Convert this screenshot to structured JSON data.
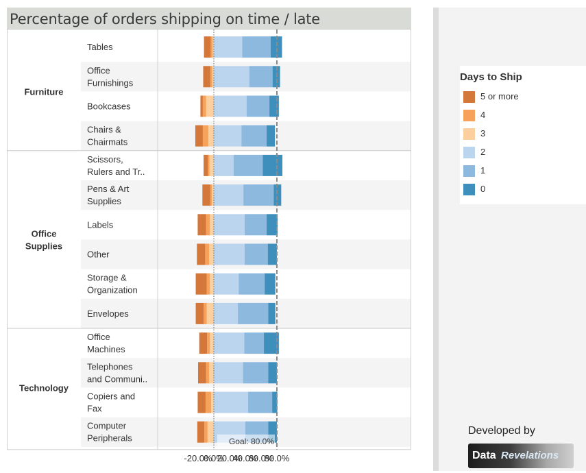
{
  "header": {
    "title": "Percentage of orders shipping on time / late"
  },
  "chart_data": {
    "type": "bar",
    "orientation": "horizontal-diverging-stacked",
    "xlim": [
      -30,
      100
    ],
    "x_ticks": [
      "-20.0%",
      "0.0%",
      "20.0%",
      "40.0%",
      "60.0%",
      "80.0%"
    ],
    "goal": {
      "value": 80,
      "label": "Goal: 80.0%"
    },
    "legend_title": "Days to Ship",
    "legend_placement": "right",
    "series_order": [
      "5 or more",
      "4",
      "3",
      "2",
      "1",
      "0"
    ],
    "colors": {
      "5 or more": "#d3783a",
      "4": "#f7a25a",
      "3": "#fccf9e",
      "2": "#bcd5ef",
      "1": "#8db9df",
      "0": "#3f8fbc"
    },
    "groups": [
      {
        "name": "Furniture",
        "rows": [
          {
            "label": [
              "Tables"
            ],
            "late": {
              "3": 1.5,
              "4": 2.5,
              "5 or more": 8.5
            },
            "ontime": {
              "2": 36,
              "1": 36,
              "0": 14.5
            }
          },
          {
            "label": [
              "Office",
              "Furnishings"
            ],
            "late": {
              "3": 2,
              "4": 2.5,
              "5 or more": 9
            },
            "ontime": {
              "2": 45,
              "1": 29.5,
              "0": 9.5
            }
          },
          {
            "label": [
              "Bookcases"
            ],
            "late": {
              "3": 10,
              "4": 4,
              "5 or more": 3
            },
            "ontime": {
              "2": 41.5,
              "1": 29,
              "0": 12
            }
          },
          {
            "label": [
              "Chairs &",
              "Chairmats"
            ],
            "late": {
              "3": 7,
              "4": 7,
              "5 or more": 9.5
            },
            "ontime": {
              "2": 35,
              "1": 32,
              "0": 10.5
            }
          }
        ]
      },
      {
        "name": "Office Supplies",
        "rows": [
          {
            "label": [
              "Scissors,",
              "Rulers and Tr.."
            ],
            "late": {
              "3": 5.5,
              "4": 2,
              "5 or more": 5.5
            },
            "ontime": {
              "2": 25,
              "1": 37,
              "0": 25
            }
          },
          {
            "label": [
              "Pens & Art",
              "Supplies"
            ],
            "late": {
              "3": 2.5,
              "4": 2,
              "5 or more": 10
            },
            "ontime": {
              "2": 37.5,
              "1": 38.5,
              "0": 9.5
            }
          },
          {
            "label": [
              "Labels"
            ],
            "late": {
              "3": 5,
              "4": 5,
              "5 or more": 10.5
            },
            "ontime": {
              "2": 39,
              "1": 28,
              "0": 14
            }
          },
          {
            "label": [
              "Other"
            ],
            "late": {
              "3": 6,
              "4": 5,
              "5 or more": 10.5
            },
            "ontime": {
              "2": 39,
              "1": 29.5,
              "0": 11.5
            }
          },
          {
            "label": [
              "Storage &",
              "Organization"
            ],
            "late": {
              "3": 5,
              "4": 4,
              "5 or more": 14
            },
            "ontime": {
              "2": 31.5,
              "1": 33,
              "0": 13.5
            }
          },
          {
            "label": [
              "Envelopes"
            ],
            "late": {
              "3": 9,
              "4": 4,
              "5 or more": 10
            },
            "ontime": {
              "2": 30.5,
              "1": 38.5,
              "0": 9
            }
          }
        ]
      },
      {
        "name": "Technology",
        "rows": [
          {
            "label": [
              "Office",
              "Machines"
            ],
            "late": {
              "3": 5,
              "4": 3.5,
              "5 or more": 10
            },
            "ontime": {
              "2": 38.5,
              "1": 25,
              "0": 19
            }
          },
          {
            "label": [
              "Telephones",
              "and Communi.."
            ],
            "late": {
              "3": 6,
              "4": 4,
              "5 or more": 10
            },
            "ontime": {
              "2": 37,
              "1": 32,
              "0": 11
            }
          },
          {
            "label": [
              "Copiers and",
              "Fax"
            ],
            "late": {
              "3": 3.5,
              "4": 7,
              "5 or more": 10
            },
            "ontime": {
              "2": 43.5,
              "1": 30.5,
              "0": 6.5
            }
          },
          {
            "label": [
              "Computer",
              "Peripherals"
            ],
            "late": {
              "3": 8,
              "4": 4,
              "5 or more": 9
            },
            "ontime": {
              "2": 40,
              "1": 29,
              "0": 11
            }
          }
        ]
      }
    ]
  },
  "credit": {
    "developed_by": "Developed by",
    "logo_data": "Data",
    "logo_revelations": "Revelations"
  }
}
